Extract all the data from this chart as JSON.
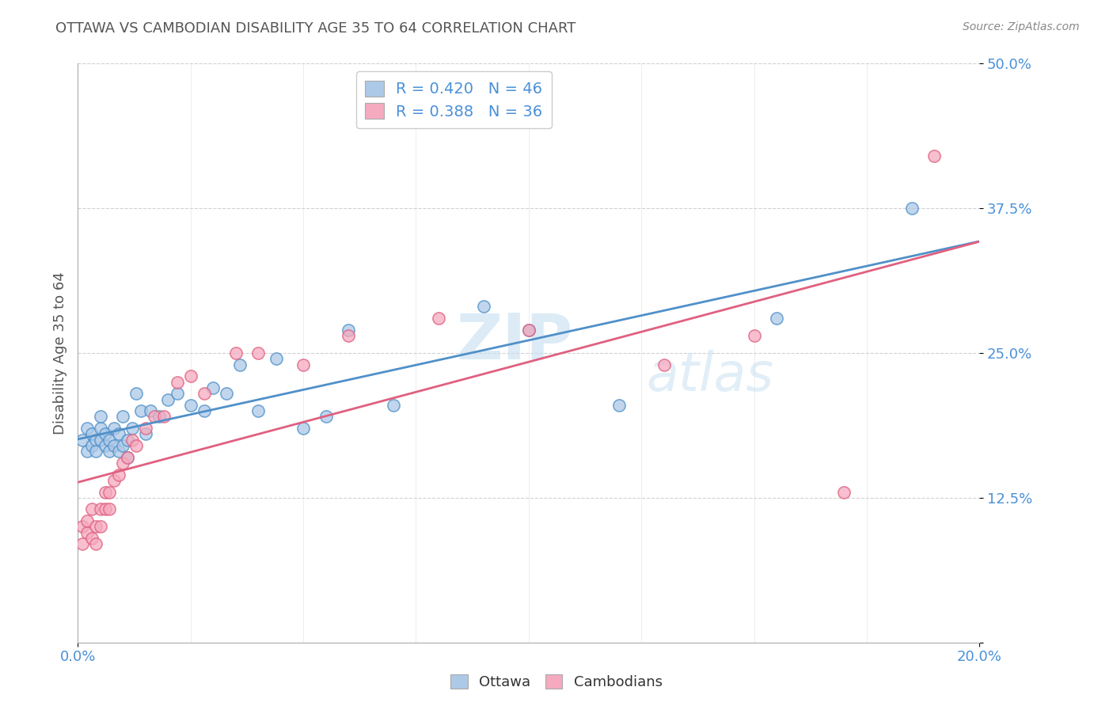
{
  "title": "OTTAWA VS CAMBODIAN DISABILITY AGE 35 TO 64 CORRELATION CHART",
  "source": "Source: ZipAtlas.com",
  "ylabel": "Disability Age 35 to 64",
  "xlim": [
    0.0,
    0.2
  ],
  "ylim": [
    0.0,
    0.5
  ],
  "yticks": [
    0.0,
    0.125,
    0.25,
    0.375,
    0.5
  ],
  "ytick_labels": [
    "",
    "12.5%",
    "25.0%",
    "37.5%",
    "50.0%"
  ],
  "ottawa_color": "#adc9e8",
  "cambodian_color": "#f5aabf",
  "ottawa_line_color": "#5090c8",
  "cambodian_line_color": "#e06080",
  "ottawa_R": 0.42,
  "ottawa_N": 46,
  "cambodian_R": 0.388,
  "cambodian_N": 36,
  "background_color": "#ffffff",
  "grid_color": "#cccccc",
  "watermark_zip": "ZIP",
  "watermark_atlas": "atlas",
  "ottawa_x": [
    0.001,
    0.002,
    0.002,
    0.003,
    0.003,
    0.004,
    0.004,
    0.005,
    0.005,
    0.005,
    0.006,
    0.006,
    0.007,
    0.007,
    0.008,
    0.008,
    0.009,
    0.009,
    0.01,
    0.01,
    0.011,
    0.011,
    0.012,
    0.013,
    0.014,
    0.015,
    0.016,
    0.018,
    0.02,
    0.022,
    0.025,
    0.028,
    0.03,
    0.033,
    0.036,
    0.04,
    0.044,
    0.05,
    0.055,
    0.06,
    0.07,
    0.09,
    0.1,
    0.12,
    0.155,
    0.185
  ],
  "ottawa_y": [
    0.175,
    0.185,
    0.165,
    0.18,
    0.17,
    0.175,
    0.165,
    0.185,
    0.195,
    0.175,
    0.17,
    0.18,
    0.175,
    0.165,
    0.17,
    0.185,
    0.165,
    0.18,
    0.17,
    0.195,
    0.175,
    0.16,
    0.185,
    0.215,
    0.2,
    0.18,
    0.2,
    0.195,
    0.21,
    0.215,
    0.205,
    0.2,
    0.22,
    0.215,
    0.24,
    0.2,
    0.245,
    0.185,
    0.195,
    0.27,
    0.205,
    0.29,
    0.27,
    0.205,
    0.28,
    0.375
  ],
  "cambodian_x": [
    0.001,
    0.001,
    0.002,
    0.002,
    0.003,
    0.003,
    0.004,
    0.004,
    0.005,
    0.005,
    0.006,
    0.006,
    0.007,
    0.007,
    0.008,
    0.009,
    0.01,
    0.011,
    0.012,
    0.013,
    0.015,
    0.017,
    0.019,
    0.022,
    0.025,
    0.028,
    0.035,
    0.04,
    0.05,
    0.06,
    0.08,
    0.1,
    0.13,
    0.15,
    0.17,
    0.19
  ],
  "cambodian_y": [
    0.1,
    0.085,
    0.095,
    0.105,
    0.09,
    0.115,
    0.085,
    0.1,
    0.1,
    0.115,
    0.115,
    0.13,
    0.115,
    0.13,
    0.14,
    0.145,
    0.155,
    0.16,
    0.175,
    0.17,
    0.185,
    0.195,
    0.195,
    0.225,
    0.23,
    0.215,
    0.25,
    0.25,
    0.24,
    0.265,
    0.28,
    0.27,
    0.24,
    0.265,
    0.13,
    0.42
  ]
}
